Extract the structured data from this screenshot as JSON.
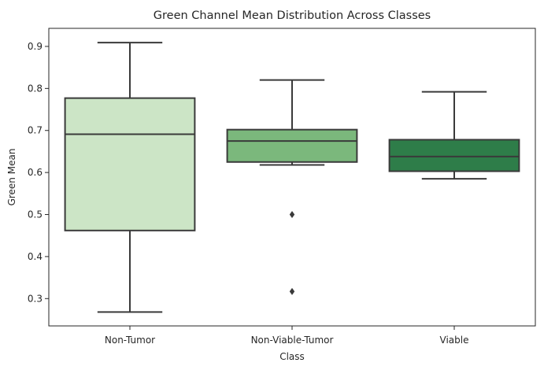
{
  "chart_data": {
    "type": "box",
    "title": "Green Channel Mean Distribution Across Classes",
    "xlabel": "Class",
    "ylabel": "Green Mean",
    "ylim": [
      0.235,
      0.943
    ],
    "yticks": [
      0.3,
      0.4,
      0.5,
      0.6,
      0.7,
      0.8,
      0.9
    ],
    "ytick_labels": [
      "0.3",
      "0.4",
      "0.5",
      "0.6",
      "0.7",
      "0.8",
      "0.9"
    ],
    "grid": false,
    "legend": "none",
    "categories": [
      "Non-Tumor",
      "Non-Viable-Tumor",
      "Viable"
    ],
    "boxes": [
      {
        "category": "Non-Tumor",
        "whisker_low": 0.268,
        "q1": 0.462,
        "median": 0.691,
        "q3": 0.777,
        "whisker_high": 0.909,
        "outliers": [],
        "color": "#cce5c6"
      },
      {
        "category": "Non-Viable-Tumor",
        "whisker_low": 0.618,
        "q1": 0.625,
        "median": 0.675,
        "q3": 0.702,
        "whisker_high": 0.82,
        "outliers": [
          0.5,
          0.317
        ],
        "color": "#7bb87c"
      },
      {
        "category": "Viable",
        "whisker_low": 0.585,
        "q1": 0.603,
        "median": 0.638,
        "q3": 0.678,
        "whisker_high": 0.792,
        "outliers": [],
        "color": "#2e7d49"
      }
    ],
    "line_color": "#3a3a3a"
  }
}
